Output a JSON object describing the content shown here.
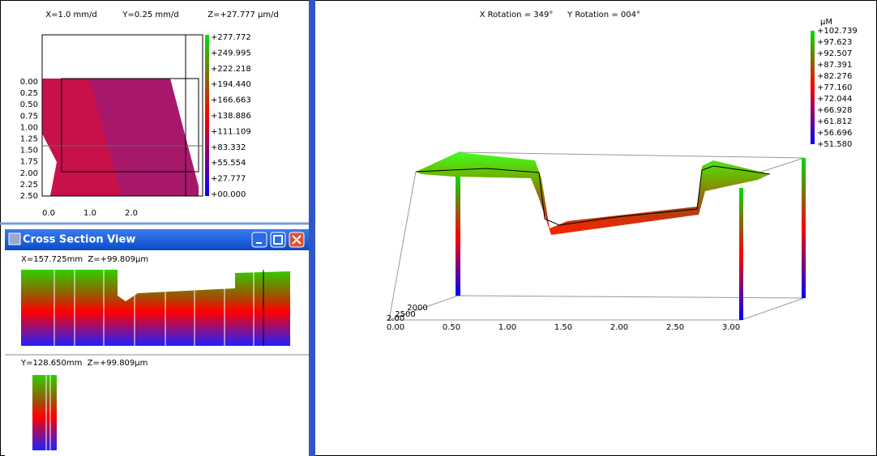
{
  "contour_view": {
    "header": [
      "X=1.0 mm/d",
      "Y=0.25 mm/d",
      "Z=+27.777 µm/d"
    ],
    "scale_labels": [
      "+277.772",
      "+249.995",
      "+222.218",
      "+194.440",
      "+166.663",
      "+138.886",
      "+111.109",
      "+83.332",
      "+55.554",
      "+27.777",
      "+00.000"
    ],
    "y_labels": [
      "0.00",
      "0.25",
      "0.50",
      "0.75",
      "1.00",
      "1.25",
      "1.50",
      "1.75",
      "2.00",
      "2.25",
      "2.50"
    ],
    "x_labels": [
      "0.0",
      "1.0",
      "2.0"
    ]
  },
  "cross_section_view": {
    "title": "Cross Section View",
    "x_profile": {
      "label": "X=157.725mm  Z=+99.809µm"
    },
    "y_profile": {
      "label": "Y=128.650mm  Z=+99.809µm"
    }
  },
  "view_3d": {
    "x_rotation": "X Rotation = 349°",
    "y_rotation": "Y Rotation = 004°",
    "unit": "µM",
    "scale_labels": [
      "+102.739",
      "+97.623",
      "+92.507",
      "+87.391",
      "+82.276",
      "+77.160",
      "+72.044",
      "+66.928",
      "+61.812",
      "+56.696",
      "+51.580"
    ],
    "x_axis_labels": [
      "0.00",
      "0.50",
      "1.00",
      "1.50",
      "2.00",
      "2.50",
      "3.00"
    ],
    "depth_labels": [
      "2.00",
      "2500",
      "2000"
    ]
  }
}
